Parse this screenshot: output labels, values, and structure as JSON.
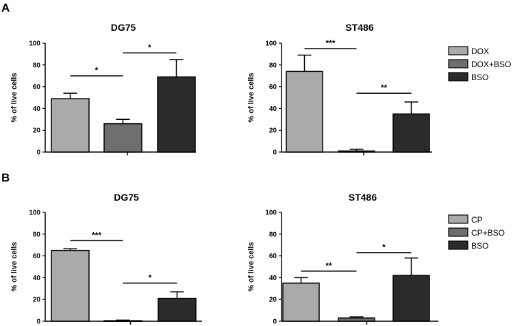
{
  "panels": [
    {
      "letter": "A"
    },
    {
      "letter": "B"
    }
  ],
  "legends": [
    {
      "entries": [
        {
          "label": "DOX",
          "color": "#aaaaaa"
        },
        {
          "label": "DOX+BSO",
          "color": "#6e6e6e"
        },
        {
          "label": "BSO",
          "color": "#2b2b2b"
        }
      ]
    },
    {
      "entries": [
        {
          "label": "CP",
          "color": "#aaaaaa"
        },
        {
          "label": "CP+BSO",
          "color": "#6e6e6e"
        },
        {
          "label": "BSO",
          "color": "#2b2b2b"
        }
      ]
    }
  ],
  "chart_data": [
    {
      "type": "bar",
      "panel": "A",
      "title": "DG75",
      "ylabel": "% of live cells",
      "ylim": [
        0,
        100
      ],
      "yticks": [
        0,
        20,
        40,
        60,
        80,
        100
      ],
      "categories": [
        "DOX",
        "DOX+BSO",
        "BSO"
      ],
      "values": [
        49,
        26,
        69
      ],
      "errors": [
        5,
        4,
        16
      ],
      "colors": [
        "#aaaaaa",
        "#6e6e6e",
        "#2b2b2b"
      ],
      "significance": [
        {
          "from": 0,
          "to": 1,
          "label": "*",
          "y": 70
        },
        {
          "from": 1,
          "to": 2,
          "label": "*",
          "y": 91
        }
      ]
    },
    {
      "type": "bar",
      "panel": "A",
      "title": "ST486",
      "ylabel": "% of live cells",
      "ylim": [
        0,
        100
      ],
      "yticks": [
        0,
        20,
        40,
        60,
        80,
        100
      ],
      "categories": [
        "DOX",
        "DOX+BSO",
        "BSO"
      ],
      "values": [
        74,
        1,
        35
      ],
      "errors": [
        15,
        1.5,
        11
      ],
      "colors": [
        "#aaaaaa",
        "#6e6e6e",
        "#2b2b2b"
      ],
      "significance": [
        {
          "from": 0,
          "to": 1,
          "label": "***",
          "y": 95
        },
        {
          "from": 1,
          "to": 2,
          "label": "**",
          "y": 54
        }
      ]
    },
    {
      "type": "bar",
      "panel": "B",
      "title": "DG75",
      "ylabel": "% of live cells",
      "ylim": [
        0,
        100
      ],
      "yticks": [
        0,
        20,
        40,
        60,
        80,
        100
      ],
      "categories": [
        "CP",
        "CP+BSO",
        "BSO"
      ],
      "values": [
        65,
        0.5,
        21
      ],
      "errors": [
        1.5,
        0.5,
        6
      ],
      "colors": [
        "#aaaaaa",
        "#6e6e6e",
        "#2b2b2b"
      ],
      "significance": [
        {
          "from": 0,
          "to": 1,
          "label": "***",
          "y": 74
        },
        {
          "from": 1,
          "to": 2,
          "label": "*",
          "y": 35
        }
      ]
    },
    {
      "type": "bar",
      "panel": "B",
      "title": "ST486",
      "ylabel": "% of live cells",
      "ylim": [
        0,
        100
      ],
      "yticks": [
        0,
        20,
        40,
        60,
        80,
        100
      ],
      "categories": [
        "CP",
        "CP+BSO",
        "BSO"
      ],
      "values": [
        35,
        3,
        42
      ],
      "errors": [
        5,
        1,
        16
      ],
      "colors": [
        "#aaaaaa",
        "#6e6e6e",
        "#2b2b2b"
      ],
      "significance": [
        {
          "from": 0,
          "to": 1,
          "label": "**",
          "y": 46
        },
        {
          "from": 1,
          "to": 2,
          "label": "*",
          "y": 63
        }
      ]
    }
  ]
}
